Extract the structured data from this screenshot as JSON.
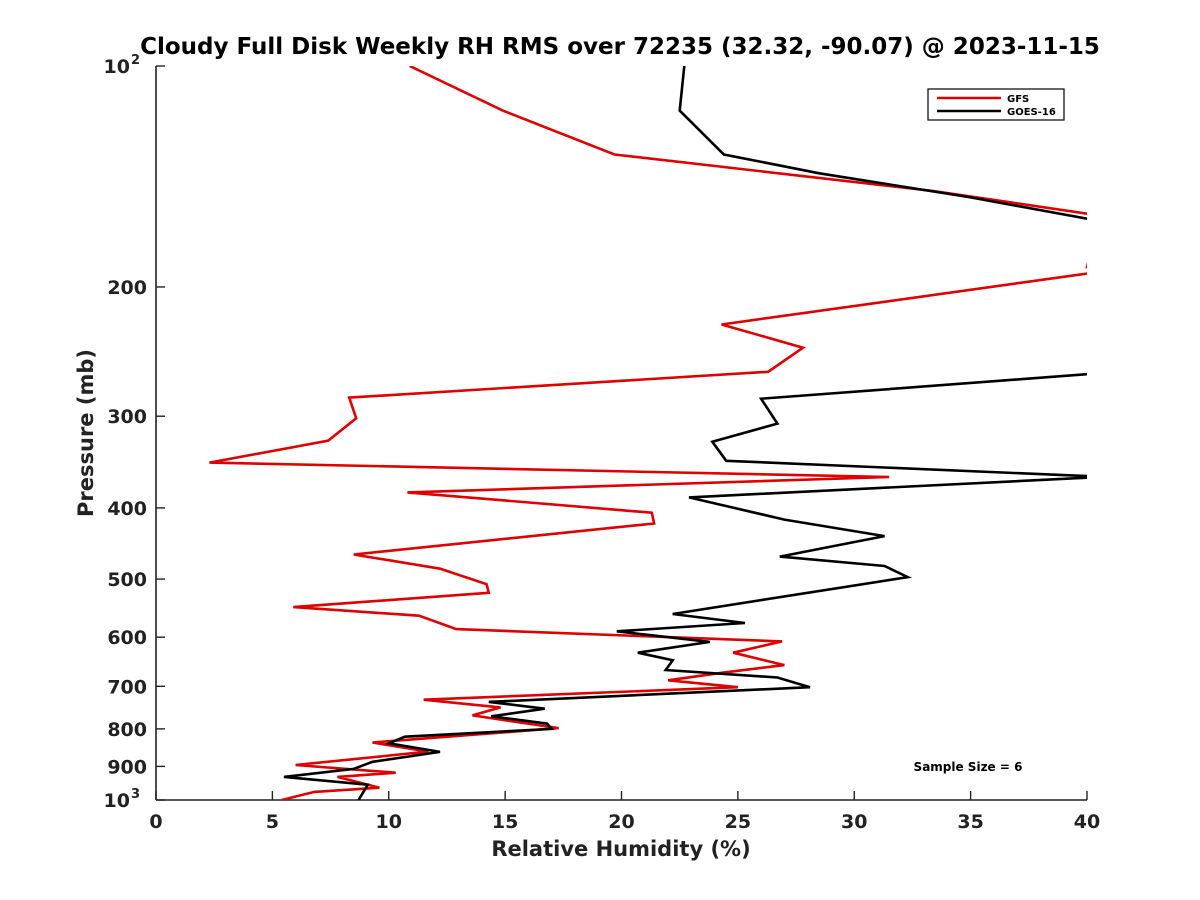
{
  "chart_data": {
    "type": "line",
    "title": "Cloudy Full Disk Weekly RH RMS over 72235 (32.32, -90.07) @ 2023-11-15",
    "xlabel": "Relative Humidity (%)",
    "ylabel": "Pressure (mb)",
    "xlim": [
      0,
      40
    ],
    "ylim": [
      100,
      1000
    ],
    "yscale": "log",
    "y_reversed": true,
    "x_ticks": [
      0,
      5,
      10,
      15,
      20,
      25,
      30,
      35,
      40
    ],
    "x_tick_labels": [
      "0",
      "5",
      "10",
      "15",
      "20",
      "25",
      "30",
      "35",
      "40"
    ],
    "y_ticks": [
      200,
      300,
      400,
      500,
      600,
      700,
      800,
      900
    ],
    "y_tick_labels": [
      "200",
      "300",
      "400",
      "500",
      "600",
      "700",
      "800",
      "900"
    ],
    "y_limit_labels": [
      {
        "value": 100,
        "base": "10",
        "exp": "2"
      },
      {
        "value": 1000,
        "base": "10",
        "exp": "3"
      }
    ],
    "legend_position": "top-right",
    "annotation": "Sample Size = 6",
    "series": [
      {
        "name": "GFS",
        "color": "#e00000",
        "points": [
          [
            10.9,
            100
          ],
          [
            14.9,
            115
          ],
          [
            19.7,
            132
          ],
          [
            33.4,
            148
          ],
          [
            40.6,
            160
          ],
          [
            40.0,
            188
          ],
          [
            40.9,
            190
          ],
          [
            24.3,
            225
          ],
          [
            27.8,
            242
          ],
          [
            26.3,
            261
          ],
          [
            8.3,
            283
          ],
          [
            8.6,
            302
          ],
          [
            7.4,
            324
          ],
          [
            2.3,
            347
          ],
          [
            31.5,
            363
          ],
          [
            10.8,
            381
          ],
          [
            21.3,
            406
          ],
          [
            21.4,
            420
          ],
          [
            8.5,
            463
          ],
          [
            12.2,
            484
          ],
          [
            14.2,
            508
          ],
          [
            14.3,
            522
          ],
          [
            5.9,
            546
          ],
          [
            11.3,
            561
          ],
          [
            12.9,
            585
          ],
          [
            26.9,
            608
          ],
          [
            24.8,
            630
          ],
          [
            27.0,
            655
          ],
          [
            24.3,
            671
          ],
          [
            22.0,
            687
          ],
          [
            25.0,
            702
          ],
          [
            11.5,
            730
          ],
          [
            14.8,
            748
          ],
          [
            13.6,
            767
          ],
          [
            17.3,
            798
          ],
          [
            9.3,
            835
          ],
          [
            11.7,
            859
          ],
          [
            6.0,
            896
          ],
          [
            10.3,
            918
          ],
          [
            7.8,
            930
          ],
          [
            9.6,
            962
          ],
          [
            6.8,
            975
          ],
          [
            5.4,
            1000
          ]
        ]
      },
      {
        "name": "GOES-16",
        "color": "#000000",
        "points": [
          [
            22.7,
            100
          ],
          [
            22.5,
            115
          ],
          [
            24.4,
            132
          ],
          [
            28.5,
            140
          ],
          [
            35.0,
            151
          ],
          [
            40.7,
            163
          ],
          [
            41.6,
            260
          ],
          [
            40.0,
            263
          ],
          [
            26.0,
            284
          ],
          [
            26.7,
            307
          ],
          [
            23.9,
            325
          ],
          [
            24.5,
            345
          ],
          [
            40.0,
            362
          ],
          [
            40.6,
            363
          ],
          [
            22.9,
            387
          ],
          [
            27.0,
            415
          ],
          [
            31.3,
            437
          ],
          [
            26.8,
            466
          ],
          [
            31.3,
            480
          ],
          [
            32.3,
            497
          ],
          [
            22.2,
            558
          ],
          [
            25.3,
            574
          ],
          [
            19.8,
            589
          ],
          [
            23.8,
            609
          ],
          [
            20.7,
            630
          ],
          [
            22.2,
            645
          ],
          [
            21.9,
            665
          ],
          [
            26.7,
            681
          ],
          [
            28.1,
            702
          ],
          [
            14.3,
            735
          ],
          [
            16.7,
            751
          ],
          [
            14.4,
            769
          ],
          [
            16.8,
            787
          ],
          [
            17.0,
            800
          ],
          [
            10.7,
            820
          ],
          [
            10.0,
            837
          ],
          [
            12.2,
            860
          ],
          [
            9.3,
            887
          ],
          [
            8.5,
            907
          ],
          [
            5.5,
            930
          ],
          [
            9.1,
            953
          ],
          [
            8.7,
            1000
          ]
        ]
      }
    ]
  }
}
